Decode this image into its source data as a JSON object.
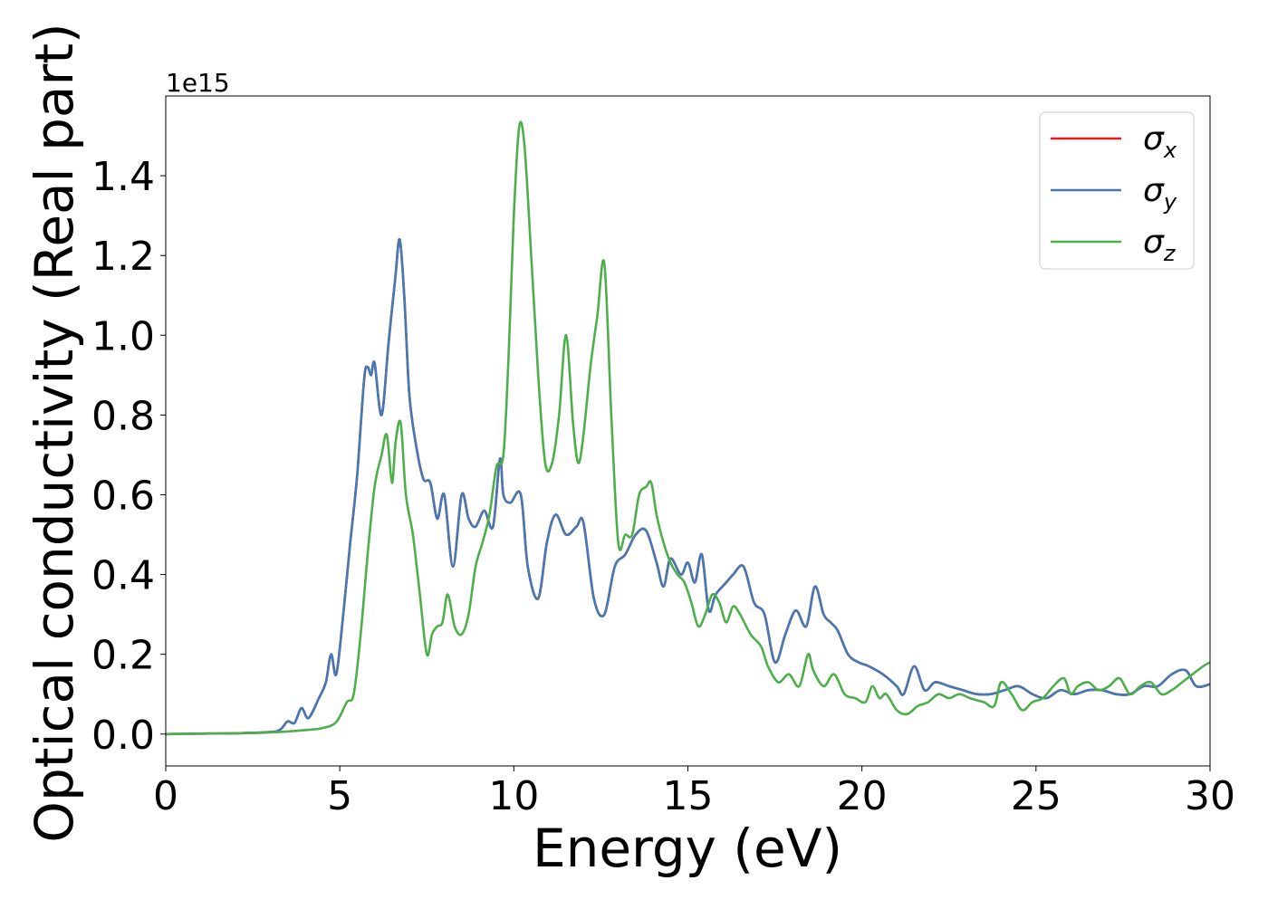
{
  "chart_data": {
    "type": "line",
    "xlabel": "Energy (eV)",
    "ylabel": "Optical conductivity (Real part)",
    "offset_text": "1e15",
    "y_scale_factor": 1000000000000000.0,
    "xlim": [
      0,
      30
    ],
    "ylim": [
      -0.08,
      1.6
    ],
    "xticks": [
      0,
      5,
      10,
      15,
      20,
      25,
      30
    ],
    "xtick_labels": [
      "0",
      "5",
      "10",
      "15",
      "20",
      "25",
      "30"
    ],
    "yticks": [
      0.0,
      0.2,
      0.4,
      0.6,
      0.8,
      1.0,
      1.2,
      1.4
    ],
    "ytick_labels": [
      "0.0",
      "0.2",
      "0.4",
      "0.6",
      "0.8",
      "1.0",
      "1.2",
      "1.4"
    ],
    "grid": false,
    "legend_position": "top-right",
    "series": [
      {
        "name": "σx",
        "legend_base": "σ",
        "legend_sub": "x",
        "color": "#e41a1c",
        "x": [
          0,
          1,
          2,
          3,
          3.3,
          3.5,
          3.7,
          3.9,
          4.1,
          4.4,
          4.6,
          4.75,
          4.9,
          5.1,
          5.3,
          5.5,
          5.7,
          5.8,
          5.9,
          6.0,
          6.2,
          6.4,
          6.6,
          6.72,
          6.85,
          7.0,
          7.2,
          7.4,
          7.6,
          7.8,
          8.0,
          8.25,
          8.5,
          8.7,
          8.9,
          9.15,
          9.4,
          9.6,
          9.7,
          9.9,
          10.2,
          10.4,
          10.7,
          10.95,
          11.2,
          11.5,
          11.8,
          12.0,
          12.3,
          12.6,
          12.9,
          13.2,
          13.5,
          13.8,
          14.1,
          14.3,
          14.5,
          14.8,
          15.0,
          15.2,
          15.4,
          15.6,
          15.8,
          16.1,
          16.3,
          16.6,
          16.9,
          17.2,
          17.5,
          17.8,
          18.1,
          18.4,
          18.65,
          18.9,
          19.1,
          19.3,
          19.6,
          19.9,
          20.2,
          20.6,
          21.0,
          21.2,
          21.5,
          21.8,
          22.1,
          22.5,
          22.9,
          23.3,
          23.7,
          24.1,
          24.5,
          24.9,
          25.3,
          25.7,
          26.1,
          26.5,
          26.9,
          27.3,
          27.7,
          28.1,
          28.5,
          28.9,
          29.3,
          29.6,
          30
        ],
        "y": [
          0,
          0.001,
          0.002,
          0.005,
          0.012,
          0.032,
          0.028,
          0.065,
          0.04,
          0.09,
          0.13,
          0.2,
          0.15,
          0.3,
          0.48,
          0.65,
          0.89,
          0.92,
          0.9,
          0.93,
          0.8,
          0.98,
          1.15,
          1.24,
          1.1,
          0.85,
          0.72,
          0.64,
          0.63,
          0.54,
          0.6,
          0.42,
          0.6,
          0.54,
          0.52,
          0.56,
          0.52,
          0.69,
          0.6,
          0.58,
          0.6,
          0.42,
          0.34,
          0.48,
          0.55,
          0.5,
          0.52,
          0.53,
          0.34,
          0.3,
          0.42,
          0.45,
          0.5,
          0.51,
          0.43,
          0.37,
          0.44,
          0.4,
          0.43,
          0.38,
          0.45,
          0.31,
          0.35,
          0.38,
          0.4,
          0.42,
          0.33,
          0.3,
          0.18,
          0.25,
          0.31,
          0.27,
          0.37,
          0.3,
          0.28,
          0.26,
          0.2,
          0.18,
          0.17,
          0.15,
          0.12,
          0.1,
          0.17,
          0.11,
          0.13,
          0.12,
          0.11,
          0.1,
          0.1,
          0.11,
          0.12,
          0.1,
          0.09,
          0.11,
          0.1,
          0.11,
          0.11,
          0.1,
          0.1,
          0.12,
          0.12,
          0.15,
          0.16,
          0.12,
          0.125
        ]
      },
      {
        "name": "σy",
        "legend_base": "σ",
        "legend_sub": "y",
        "color": "#4479b3",
        "x": [
          0,
          1,
          2,
          3,
          3.3,
          3.5,
          3.7,
          3.9,
          4.1,
          4.4,
          4.6,
          4.75,
          4.9,
          5.1,
          5.3,
          5.5,
          5.7,
          5.8,
          5.9,
          6.0,
          6.2,
          6.4,
          6.6,
          6.72,
          6.85,
          7.0,
          7.2,
          7.4,
          7.6,
          7.8,
          8.0,
          8.25,
          8.5,
          8.7,
          8.9,
          9.15,
          9.4,
          9.6,
          9.7,
          9.9,
          10.2,
          10.4,
          10.7,
          10.95,
          11.2,
          11.5,
          11.8,
          12.0,
          12.3,
          12.6,
          12.9,
          13.2,
          13.5,
          13.8,
          14.1,
          14.3,
          14.5,
          14.8,
          15.0,
          15.2,
          15.4,
          15.6,
          15.8,
          16.1,
          16.3,
          16.6,
          16.9,
          17.2,
          17.5,
          17.8,
          18.1,
          18.4,
          18.65,
          18.9,
          19.1,
          19.3,
          19.6,
          19.9,
          20.2,
          20.6,
          21.0,
          21.2,
          21.5,
          21.8,
          22.1,
          22.5,
          22.9,
          23.3,
          23.7,
          24.1,
          24.5,
          24.9,
          25.3,
          25.7,
          26.1,
          26.5,
          26.9,
          27.3,
          27.7,
          28.1,
          28.5,
          28.9,
          29.3,
          29.6,
          30
        ],
        "y": [
          0,
          0.001,
          0.002,
          0.005,
          0.012,
          0.032,
          0.028,
          0.065,
          0.04,
          0.09,
          0.13,
          0.2,
          0.15,
          0.3,
          0.48,
          0.65,
          0.89,
          0.92,
          0.9,
          0.93,
          0.8,
          0.98,
          1.15,
          1.24,
          1.1,
          0.85,
          0.72,
          0.64,
          0.63,
          0.54,
          0.6,
          0.42,
          0.6,
          0.54,
          0.52,
          0.56,
          0.52,
          0.69,
          0.6,
          0.58,
          0.6,
          0.42,
          0.34,
          0.48,
          0.55,
          0.5,
          0.52,
          0.53,
          0.34,
          0.3,
          0.42,
          0.45,
          0.5,
          0.51,
          0.43,
          0.37,
          0.44,
          0.4,
          0.43,
          0.38,
          0.45,
          0.31,
          0.35,
          0.38,
          0.4,
          0.42,
          0.33,
          0.3,
          0.18,
          0.25,
          0.31,
          0.27,
          0.37,
          0.3,
          0.28,
          0.26,
          0.2,
          0.18,
          0.17,
          0.15,
          0.12,
          0.1,
          0.17,
          0.11,
          0.13,
          0.12,
          0.11,
          0.1,
          0.1,
          0.11,
          0.12,
          0.1,
          0.09,
          0.11,
          0.1,
          0.11,
          0.11,
          0.1,
          0.1,
          0.12,
          0.12,
          0.15,
          0.16,
          0.12,
          0.125
        ]
      },
      {
        "name": "σz",
        "legend_base": "σ",
        "legend_sub": "z",
        "color": "#4daf4a",
        "x": [
          0,
          2,
          3,
          4,
          4.5,
          4.9,
          5.2,
          5.4,
          5.6,
          5.8,
          6.0,
          6.2,
          6.35,
          6.5,
          6.6,
          6.75,
          6.9,
          7.1,
          7.3,
          7.5,
          7.65,
          7.8,
          7.95,
          8.1,
          8.3,
          8.5,
          8.7,
          8.9,
          9.1,
          9.3,
          9.5,
          9.7,
          9.85,
          10.0,
          10.15,
          10.3,
          10.5,
          10.7,
          10.9,
          11.1,
          11.3,
          11.5,
          11.7,
          11.85,
          12.0,
          12.2,
          12.4,
          12.6,
          12.8,
          13.0,
          13.2,
          13.4,
          13.6,
          13.8,
          13.95,
          14.1,
          14.3,
          14.5,
          14.7,
          14.9,
          15.1,
          15.3,
          15.5,
          15.7,
          15.9,
          16.1,
          16.3,
          16.5,
          16.8,
          17.1,
          17.3,
          17.6,
          17.9,
          18.2,
          18.45,
          18.6,
          18.9,
          19.2,
          19.5,
          19.8,
          20.1,
          20.3,
          20.5,
          20.7,
          21.0,
          21.3,
          21.6,
          21.9,
          22.2,
          22.5,
          22.8,
          23.1,
          23.5,
          23.8,
          24.0,
          24.3,
          24.6,
          24.9,
          25.2,
          25.5,
          25.8,
          26.0,
          26.2,
          26.5,
          26.8,
          27.1,
          27.4,
          27.7,
          28.0,
          28.3,
          28.6,
          28.9,
          29.2,
          29.5,
          29.8,
          30
        ],
        "y": [
          0,
          0.002,
          0.004,
          0.01,
          0.015,
          0.03,
          0.08,
          0.1,
          0.25,
          0.45,
          0.62,
          0.7,
          0.75,
          0.63,
          0.73,
          0.78,
          0.6,
          0.5,
          0.35,
          0.2,
          0.25,
          0.27,
          0.28,
          0.35,
          0.27,
          0.25,
          0.3,
          0.42,
          0.48,
          0.55,
          0.67,
          0.7,
          0.95,
          1.3,
          1.52,
          1.48,
          1.2,
          0.9,
          0.68,
          0.68,
          0.8,
          1.0,
          0.78,
          0.68,
          0.75,
          0.92,
          1.05,
          1.18,
          0.8,
          0.48,
          0.5,
          0.5,
          0.6,
          0.62,
          0.63,
          0.55,
          0.48,
          0.43,
          0.4,
          0.38,
          0.33,
          0.27,
          0.3,
          0.35,
          0.33,
          0.28,
          0.32,
          0.3,
          0.25,
          0.22,
          0.17,
          0.13,
          0.15,
          0.12,
          0.2,
          0.16,
          0.12,
          0.15,
          0.1,
          0.09,
          0.08,
          0.12,
          0.09,
          0.1,
          0.06,
          0.05,
          0.07,
          0.08,
          0.1,
          0.09,
          0.1,
          0.09,
          0.08,
          0.07,
          0.13,
          0.1,
          0.06,
          0.08,
          0.09,
          0.12,
          0.14,
          0.1,
          0.12,
          0.13,
          0.11,
          0.12,
          0.14,
          0.1,
          0.12,
          0.13,
          0.1,
          0.11,
          0.13,
          0.15,
          0.17,
          0.18
        ]
      }
    ]
  }
}
